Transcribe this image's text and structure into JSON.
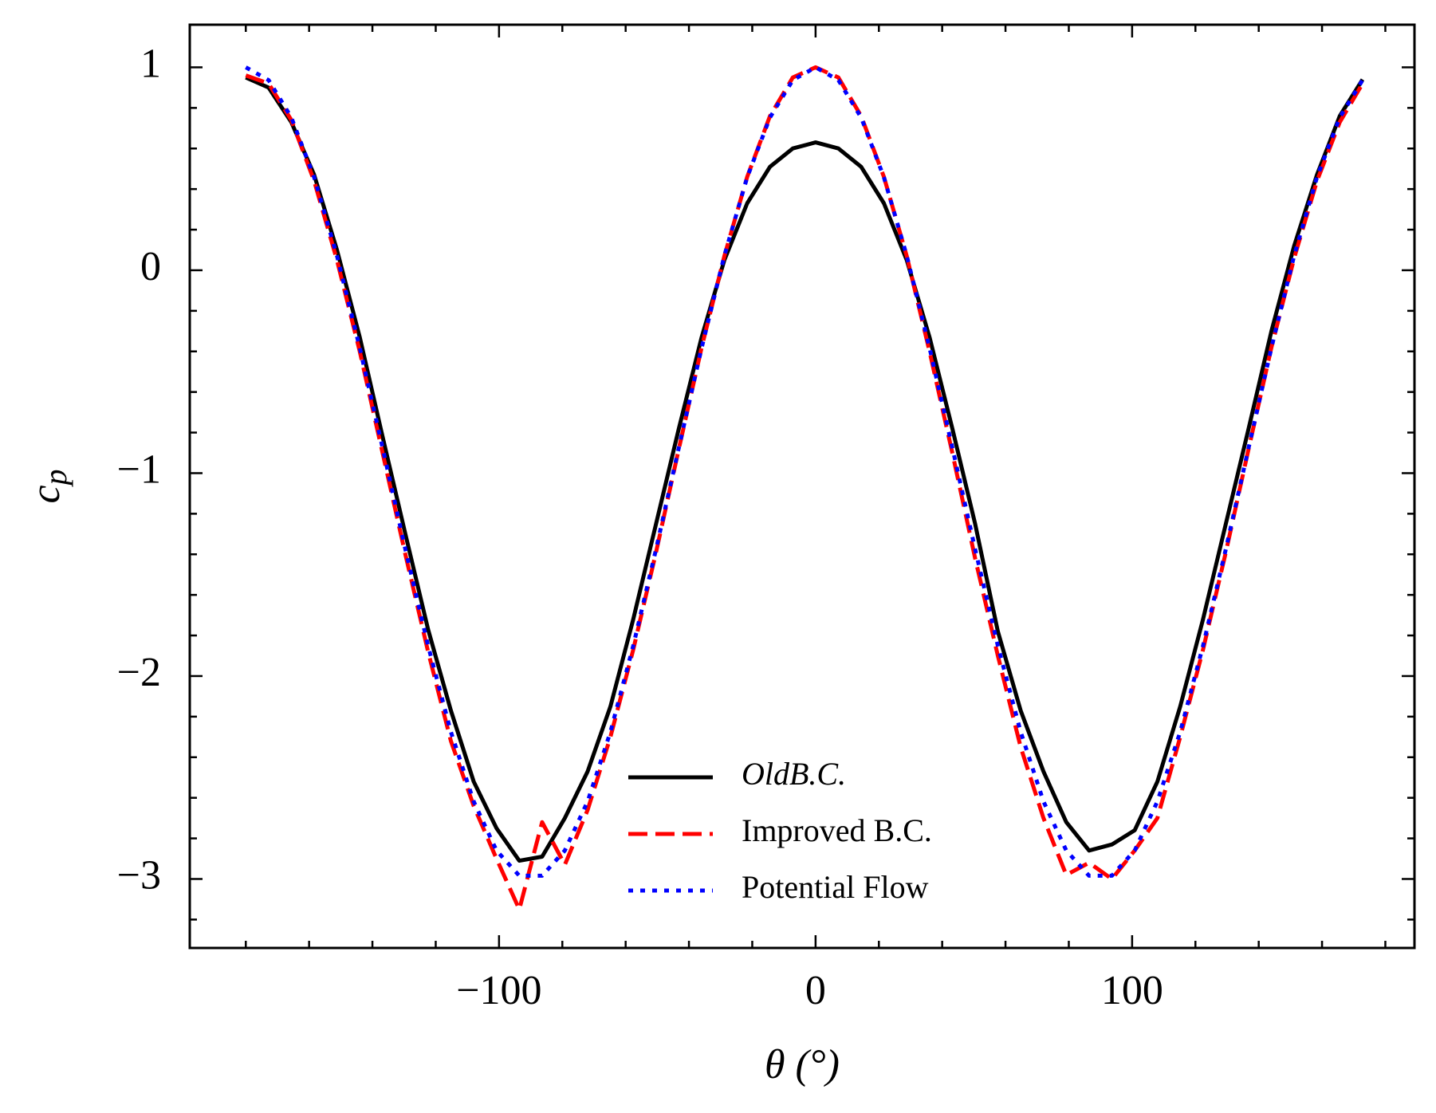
{
  "chart_data": {
    "type": "line",
    "xlabel": "θ (°)",
    "ylabel": "c",
    "ylabel_sub": "p",
    "x": [
      -180,
      -172.8,
      -165.6,
      -158.4,
      -151.2,
      -144,
      -136.8,
      -129.6,
      -122.4,
      -115.2,
      -108,
      -100.8,
      -93.6,
      -86.4,
      -79.2,
      -72,
      -64.8,
      -57.6,
      -50.4,
      -43.2,
      -36,
      -28.8,
      -21.6,
      -14.4,
      -7.2,
      0,
      7.2,
      14.4,
      21.6,
      28.8,
      36,
      43.2,
      50.4,
      57.6,
      64.8,
      72,
      79.2,
      86.4,
      93.6,
      100.8,
      108,
      115.2,
      122.4,
      129.6,
      136.8,
      144,
      151.2,
      158.4,
      165.6,
      172.8
    ],
    "series": [
      {
        "name": "OldB.C.",
        "color": "#000000",
        "style": "solid",
        "values": [
          0.95,
          0.9,
          0.73,
          0.47,
          0.1,
          -0.33,
          -0.82,
          -1.3,
          -1.77,
          -2.17,
          -2.52,
          -2.75,
          -2.91,
          -2.89,
          -2.7,
          -2.47,
          -2.15,
          -1.72,
          -1.25,
          -0.78,
          -0.33,
          0.05,
          0.33,
          0.51,
          0.6,
          0.63,
          0.6,
          0.51,
          0.33,
          0.05,
          -0.33,
          -0.78,
          -1.25,
          -1.78,
          -2.17,
          -2.47,
          -2.72,
          -2.86,
          -2.83,
          -2.76,
          -2.52,
          -2.15,
          -1.72,
          -1.25,
          -0.78,
          -0.3,
          0.12,
          0.47,
          0.76,
          0.94
        ]
      },
      {
        "name": "Improved B.C.",
        "color": "#ff0000",
        "style": "dashed",
        "values": [
          0.96,
          0.92,
          0.74,
          0.44,
          0.05,
          -0.4,
          -0.9,
          -1.4,
          -1.88,
          -2.32,
          -2.64,
          -2.9,
          -3.15,
          -2.72,
          -2.93,
          -2.66,
          -2.3,
          -1.87,
          -1.39,
          -0.88,
          -0.38,
          0.07,
          0.46,
          0.76,
          0.95,
          1.0,
          0.95,
          0.76,
          0.46,
          0.07,
          -0.4,
          -0.9,
          -1.42,
          -1.9,
          -2.35,
          -2.7,
          -2.98,
          -2.92,
          -3.0,
          -2.86,
          -2.7,
          -2.3,
          -1.87,
          -1.39,
          -0.88,
          -0.38,
          0.06,
          0.44,
          0.73,
          0.92
        ]
      },
      {
        "name": "Potential Flow",
        "color": "#0000ff",
        "style": "dotted",
        "values": [
          1.0,
          0.937,
          0.753,
          0.458,
          0.072,
          -0.382,
          -0.874,
          -1.375,
          -1.851,
          -2.275,
          -2.618,
          -2.86,
          -2.984,
          -2.984,
          -2.86,
          -2.618,
          -2.275,
          -1.851,
          -1.375,
          -0.874,
          -0.382,
          0.072,
          0.458,
          0.753,
          0.937,
          1.0,
          0.937,
          0.753,
          0.458,
          0.072,
          -0.382,
          -0.874,
          -1.375,
          -1.851,
          -2.275,
          -2.618,
          -2.86,
          -2.984,
          -2.984,
          -2.86,
          -2.618,
          -2.275,
          -1.851,
          -1.375,
          -0.874,
          -0.382,
          0.072,
          0.458,
          0.753,
          0.937
        ]
      }
    ],
    "xlim": [
      -197.7,
      189.2
    ],
    "ylim": [
      -3.34,
      1.21
    ],
    "xticks": [
      {
        "value": -100,
        "label": "−100"
      },
      0,
      100
    ],
    "yticks": [
      {
        "value": -3,
        "label": "−3"
      },
      {
        "value": -2,
        "label": "−2"
      },
      {
        "value": -1,
        "label": "−1"
      },
      0,
      1
    ],
    "xminorticks": [
      -180,
      -160,
      -140,
      -120,
      -80,
      -60,
      -40,
      -20,
      20,
      40,
      60,
      80,
      120,
      140,
      160,
      180
    ],
    "yminorticks": [
      -3.2,
      -2.8,
      -2.6,
      -2.4,
      -2.2,
      -1.8,
      -1.6,
      -1.4,
      -1.2,
      -0.8,
      -0.6,
      -0.4,
      -0.2,
      0.2,
      0.4,
      0.6,
      0.8
    ],
    "legend": "lower center"
  }
}
